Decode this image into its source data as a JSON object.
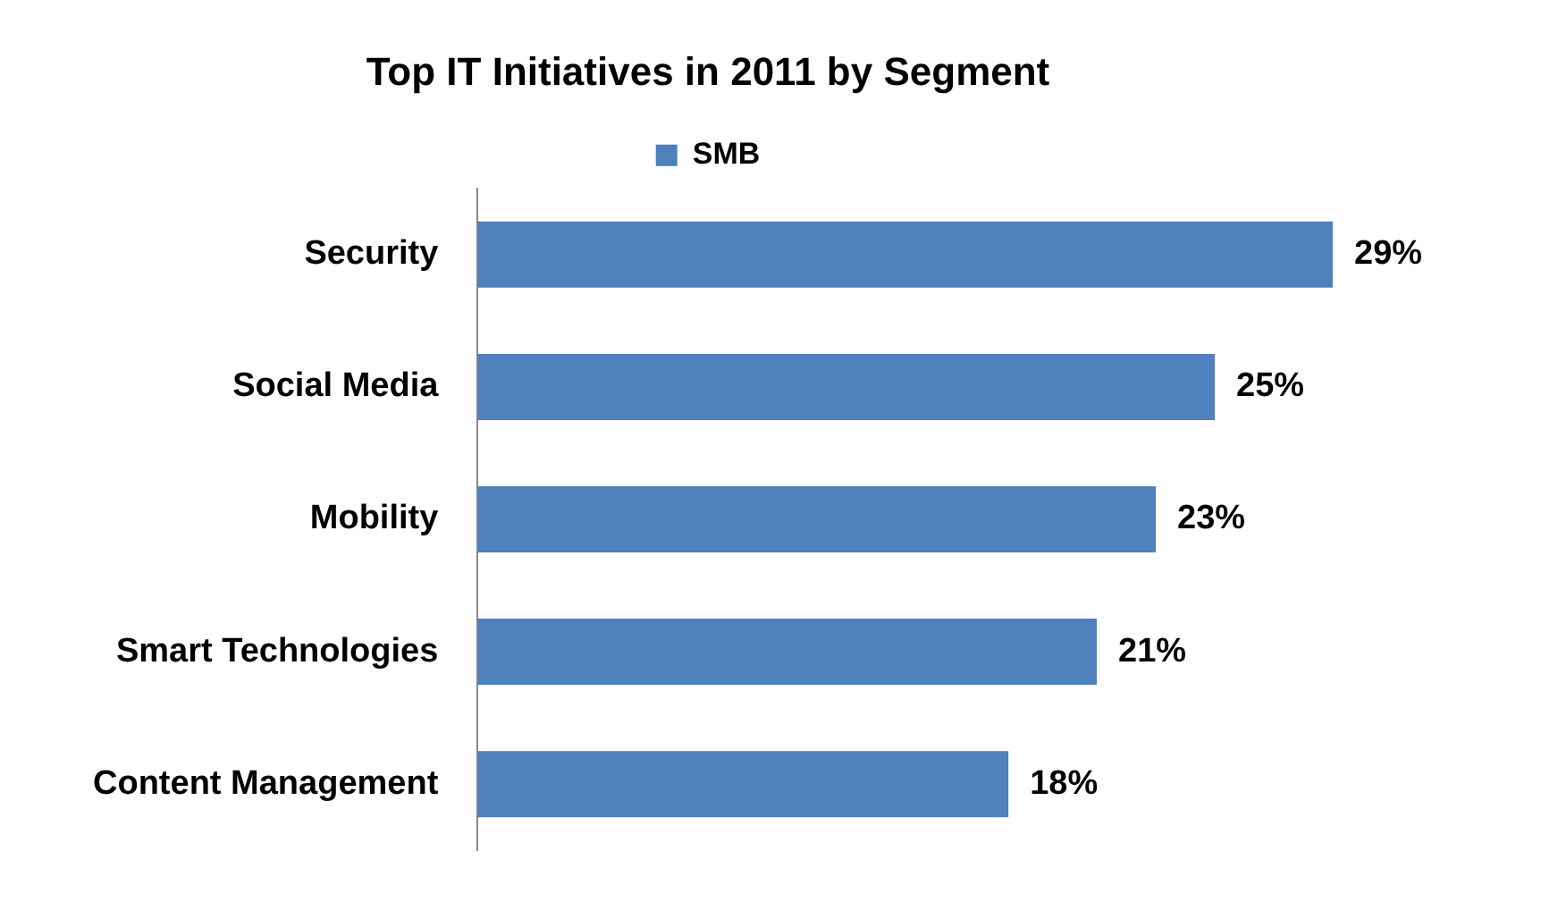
{
  "chart_data": {
    "type": "bar",
    "orientation": "horizontal",
    "title": "Top IT Initiatives in 2011 by Segment",
    "categories": [
      "Security",
      "Social Media",
      "Mobility",
      "Smart Technologies",
      "Content Management"
    ],
    "series": [
      {
        "name": "SMB",
        "color": "#4f81bd",
        "values": [
          29,
          25,
          23,
          21,
          18
        ],
        "value_labels": [
          "29%",
          "25%",
          "23%",
          "21%",
          "18%"
        ]
      }
    ],
    "legend": "top",
    "grid": false
  }
}
